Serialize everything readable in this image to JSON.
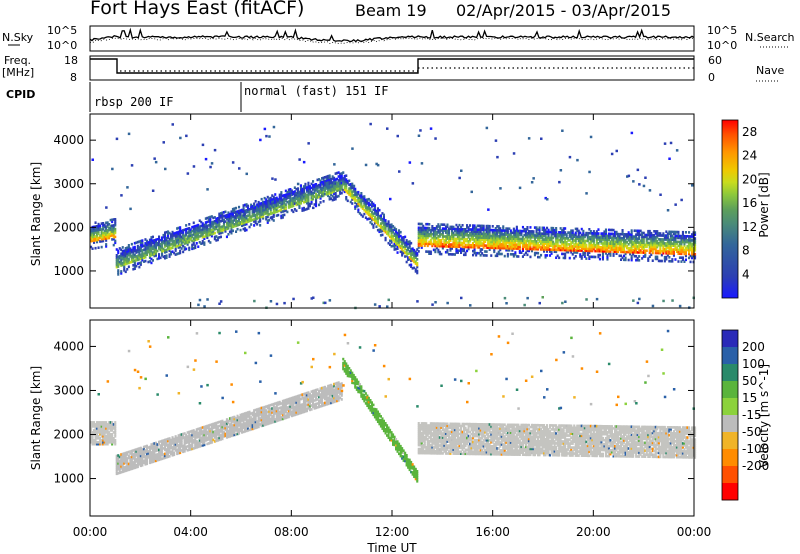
{
  "header": {
    "title": "Fort Hays East (fitACF)",
    "beam": "Beam 19",
    "date_range": "02/Apr/2015 - 03/Apr/2015"
  },
  "strips": {
    "nsky_label": "N.Sky",
    "nsky_ticks": [
      "10^5",
      "10^0"
    ],
    "nsearch_label": "N.Search",
    "nsearch_ticks": [
      "10^5",
      "10^0"
    ],
    "freq_label": "Freq.",
    "freq_unit": "[MHz]",
    "freq_ticks": [
      "18",
      "8"
    ],
    "nave_label": "Nave",
    "nave_ticks": [
      "60",
      "0"
    ],
    "cpid_label": "CPID",
    "cpid_segments": [
      {
        "label": "rbsp 200 IF",
        "start": 0.0,
        "end": 6.0
      },
      {
        "label": "normal (fast) 151 IF",
        "start": 6.0,
        "end": 24.0
      }
    ]
  },
  "colors": {
    "power_scale": [
      "#1a1aff",
      "#2c3fb3",
      "#33669a",
      "#4b8c78",
      "#5ea05a",
      "#8cc83c",
      "#c8dc1e",
      "#f0c800",
      "#ff9600",
      "#ff5000",
      "#ff0000"
    ],
    "velocity_scale": [
      "#2a2ab8",
      "#2a60a8",
      "#2a8a6a",
      "#5ab43c",
      "#8cd23c",
      "#bcbcbc",
      "#f0b428",
      "#ff8c00",
      "#ff5000",
      "#ff0000"
    ],
    "gray": "#c4c4c0"
  },
  "chart_data": [
    {
      "type": "heatmap",
      "panel": "power",
      "ylabel": "Slant Range [km]",
      "xlabel": "Time UT",
      "xlim": [
        0,
        24
      ],
      "ylim": [
        150,
        4600
      ],
      "yticks": [
        "1000",
        "2000",
        "3000",
        "4000"
      ],
      "xticks": [
        "00:00",
        "04:00",
        "08:00",
        "12:00",
        "16:00",
        "20:00",
        "00:00"
      ],
      "colorbar_label": "Power [dB]",
      "colorbar_ticks": [
        "4",
        "8",
        "12",
        "16",
        "20",
        "24",
        "28"
      ],
      "colorbar_range": [
        0,
        30
      ],
      "echo_bands": [
        {
          "t": [
            0.0,
            1.0
          ],
          "center": [
            1800,
            1900
          ],
          "width": 350,
          "peak_power": 25
        },
        {
          "t": [
            1.0,
            10.0
          ],
          "center": [
            1200,
            3000
          ],
          "width": 350,
          "peak_power": 16
        },
        {
          "t": [
            10.0,
            13.0
          ],
          "center": [
            3000,
            1200
          ],
          "width": 300,
          "peak_power": 22
        },
        {
          "t": [
            13.0,
            24.0
          ],
          "center": [
            1750,
            1550
          ],
          "width": 450,
          "peak_power": 27
        }
      ]
    },
    {
      "type": "heatmap",
      "panel": "velocity",
      "ylabel": "Slant Range [km]",
      "xlabel": "Time UT",
      "xlim": [
        0,
        24
      ],
      "ylim": [
        150,
        4600
      ],
      "yticks": [
        "1000",
        "2000",
        "3000",
        "4000"
      ],
      "xticks": [
        "00:00",
        "04:00",
        "08:00",
        "12:00",
        "16:00",
        "20:00",
        "00:00"
      ],
      "colorbar_label": "Velocity [m s^-1]",
      "colorbar_ticks": [
        "200",
        "100",
        "50",
        "15",
        "-15",
        "-50",
        "-100",
        "-200"
      ],
      "colorbar_range": [
        -250,
        250
      ],
      "echo_bands": [
        {
          "t": [
            0.0,
            1.0
          ],
          "center": [
            2000,
            2000
          ],
          "width": 500,
          "velocity": 0
        },
        {
          "t": [
            1.0,
            10.0
          ],
          "center": [
            1300,
            3000
          ],
          "width": 450,
          "velocity": -30
        },
        {
          "t": [
            10.0,
            13.0
          ],
          "center": [
            3600,
            1000
          ],
          "width": 250,
          "velocity": 30
        },
        {
          "t": [
            13.0,
            24.0
          ],
          "center": [
            1900,
            1800
          ],
          "width": 700,
          "velocity": 0
        }
      ]
    }
  ]
}
